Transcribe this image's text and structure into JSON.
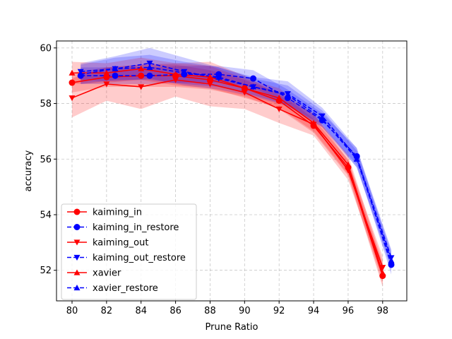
{
  "chart_data": {
    "type": "line",
    "title": "",
    "xlabel": "Prune Ratio",
    "ylabel": "accuracy",
    "xlim": [
      79.1,
      99.4
    ],
    "ylim": [
      50.9,
      60.25
    ],
    "xticks": [
      "80",
      "82",
      "84",
      "86",
      "88",
      "90",
      "92",
      "94",
      "96",
      "98"
    ],
    "yticks": [
      "52",
      "54",
      "56",
      "58",
      "60"
    ],
    "grid": true,
    "legend_position": "lower-left",
    "series": [
      {
        "name": "kaiming_in",
        "color": "#ff0000",
        "marker": "circle",
        "linestyle": "solid",
        "x": [
          80,
          82,
          84,
          86,
          88,
          90,
          92,
          94,
          96,
          98
        ],
        "y": [
          58.75,
          58.95,
          59.0,
          59.0,
          58.85,
          58.55,
          58.1,
          57.2,
          55.7,
          51.8
        ],
        "band": [
          0.35,
          0.35,
          0.4,
          0.4,
          0.35,
          0.3,
          0.3,
          0.25,
          0.3,
          0.4
        ]
      },
      {
        "name": "kaiming_in_restore",
        "color": "#0000ff",
        "marker": "circle",
        "linestyle": "dashed",
        "x": [
          80.5,
          82.5,
          84.5,
          86.5,
          88.5,
          90.5,
          92.5,
          94.5,
          96.5,
          98.5
        ],
        "y": [
          59.0,
          59.0,
          59.0,
          59.05,
          59.05,
          58.9,
          58.2,
          57.4,
          56.1,
          52.2
        ],
        "band": [
          0.3,
          0.3,
          0.3,
          0.3,
          0.3,
          0.3,
          0.3,
          0.25,
          0.3,
          0.35
        ]
      },
      {
        "name": "kaiming_out",
        "color": "#ff0000",
        "marker": "triangle-down",
        "linestyle": "solid",
        "x": [
          80,
          82,
          84,
          86,
          88,
          90,
          92,
          94,
          96,
          98
        ],
        "y": [
          58.2,
          58.7,
          58.6,
          58.85,
          58.7,
          58.4,
          57.8,
          57.25,
          55.6,
          52.1
        ],
        "band": [
          0.7,
          0.6,
          0.8,
          0.6,
          0.8,
          0.6,
          0.5,
          0.4,
          0.35,
          0.4
        ]
      },
      {
        "name": "kaiming_out_restore",
        "color": "#0000ff",
        "marker": "triangle-down",
        "linestyle": "dashed",
        "x": [
          80.5,
          82.5,
          84.5,
          86.5,
          88.5,
          90.5,
          92.5,
          94.5,
          96.5,
          98.5
        ],
        "y": [
          59.15,
          59.25,
          59.45,
          59.15,
          58.9,
          58.6,
          58.35,
          57.55,
          56.05,
          52.45
        ],
        "band": [
          0.3,
          0.45,
          0.55,
          0.5,
          0.4,
          0.35,
          0.45,
          0.3,
          0.35,
          0.3
        ]
      },
      {
        "name": "xavier",
        "color": "#ff0000",
        "marker": "triangle-up",
        "linestyle": "solid",
        "x": [
          80,
          82,
          84,
          86,
          88,
          90,
          92,
          94,
          96,
          98
        ],
        "y": [
          59.1,
          59.1,
          59.25,
          59.05,
          58.95,
          58.55,
          58.2,
          57.3,
          55.8,
          51.9
        ],
        "band": [
          0.4,
          0.35,
          0.4,
          0.4,
          0.4,
          0.35,
          0.35,
          0.3,
          0.35,
          0.4
        ]
      },
      {
        "name": "xavier_restore",
        "color": "#0000ff",
        "marker": "triangle-up",
        "linestyle": "dashed",
        "x": [
          80.5,
          82.5,
          84.5,
          86.5,
          88.5,
          90.5,
          92.5,
          94.5,
          96.5,
          98.5
        ],
        "y": [
          59.05,
          59.25,
          59.3,
          59.1,
          58.95,
          58.6,
          58.3,
          57.45,
          56.0,
          52.35
        ],
        "band": [
          0.35,
          0.4,
          0.45,
          0.4,
          0.35,
          0.3,
          0.35,
          0.3,
          0.3,
          0.35
        ]
      }
    ]
  }
}
